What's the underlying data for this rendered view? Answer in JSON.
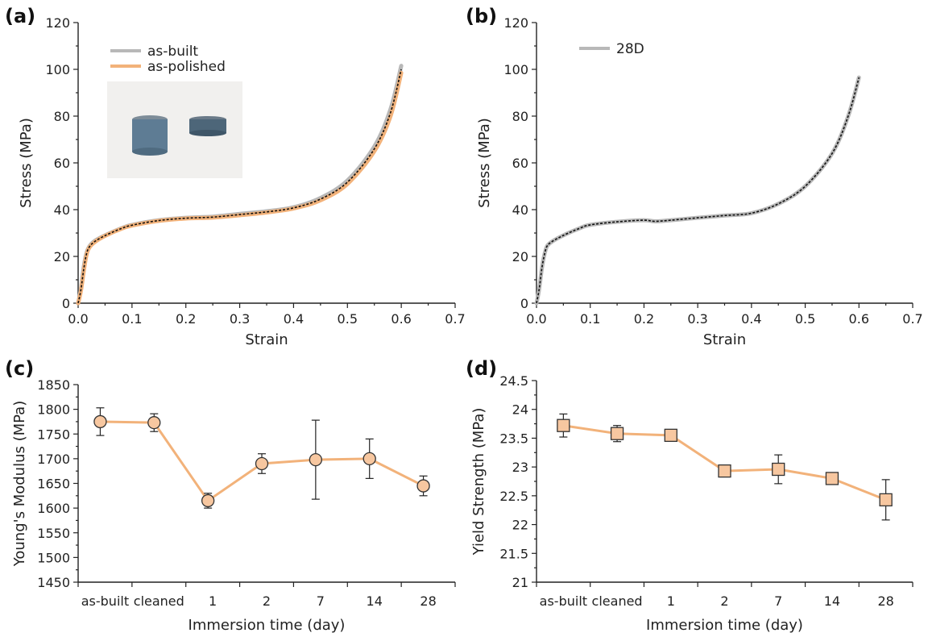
{
  "chart_data": [
    {
      "panel": "(a)",
      "type": "line",
      "xlabel": "Strain",
      "ylabel": "Stress (MPa)",
      "xlim": [
        0,
        0.7
      ],
      "ylim": [
        0,
        120
      ],
      "xticks": [
        "0.0",
        "0.1",
        "0.2",
        "0.3",
        "0.4",
        "0.5",
        "0.6",
        "0.7"
      ],
      "yticks": [
        "0",
        "20",
        "40",
        "60",
        "80",
        "100",
        "120"
      ],
      "legend_position": "top-left",
      "inset": "photo of two lattice cylinder specimens",
      "series": [
        {
          "name": "as-built",
          "color": "#b8b8b8",
          "x": [
            0,
            0.005,
            0.01,
            0.015,
            0.02,
            0.03,
            0.05,
            0.08,
            0.1,
            0.15,
            0.2,
            0.25,
            0.3,
            0.35,
            0.4,
            0.45,
            0.5,
            0.55,
            0.58,
            0.6
          ],
          "y": [
            0,
            6,
            15,
            21,
            24,
            26.5,
            29,
            32,
            33.5,
            35.5,
            36.5,
            37,
            38.2,
            39.3,
            41,
            45,
            52.5,
            67,
            83,
            101.5
          ]
        },
        {
          "name": "as-polished",
          "color": "#f2b27a",
          "x": [
            0,
            0.005,
            0.01,
            0.015,
            0.02,
            0.03,
            0.05,
            0.08,
            0.1,
            0.15,
            0.2,
            0.25,
            0.3,
            0.35,
            0.4,
            0.45,
            0.5,
            0.55,
            0.58,
            0.6
          ],
          "y": [
            0,
            5,
            13,
            20,
            23.5,
            26,
            28.8,
            31.8,
            33.2,
            35.2,
            36.2,
            36.6,
            37.6,
            38.8,
            40.5,
            44,
            51,
            65,
            80,
            98.5
          ]
        }
      ]
    },
    {
      "panel": "(b)",
      "type": "line",
      "xlabel": "Strain",
      "ylabel": "Stress (MPa)",
      "xlim": [
        0,
        0.7
      ],
      "ylim": [
        0,
        120
      ],
      "xticks": [
        "0.0",
        "0.1",
        "0.2",
        "0.3",
        "0.4",
        "0.5",
        "0.6",
        "0.7"
      ],
      "yticks": [
        "0",
        "20",
        "40",
        "60",
        "80",
        "100",
        "120"
      ],
      "legend_position": "top-left",
      "series": [
        {
          "name": "28D",
          "color": "#b8b8b8",
          "x": [
            0,
            0.005,
            0.01,
            0.015,
            0.02,
            0.03,
            0.05,
            0.08,
            0.1,
            0.15,
            0.2,
            0.22,
            0.25,
            0.3,
            0.35,
            0.4,
            0.45,
            0.5,
            0.55,
            0.58,
            0.6
          ],
          "y": [
            0,
            6,
            15,
            21,
            24.5,
            26.5,
            29,
            32,
            33.5,
            34.8,
            35.5,
            35,
            35.5,
            36.5,
            37.5,
            38.5,
            42.5,
            50,
            64,
            80,
            96.5
          ]
        }
      ]
    },
    {
      "panel": "(c)",
      "type": "line",
      "xlabel": "Immersion time (day)",
      "ylabel": "Young's Modulus (MPa)",
      "categories": [
        "as-built",
        "cleaned",
        "1",
        "2",
        "7",
        "14",
        "28"
      ],
      "ylim": [
        1450,
        1850
      ],
      "yticks": [
        "1450",
        "1500",
        "1550",
        "1600",
        "1650",
        "1700",
        "1750",
        "1800",
        "1850"
      ],
      "marker": "circle",
      "color": "#f2b27a",
      "values": [
        1775,
        1773,
        1615,
        1690,
        1698,
        1700,
        1645
      ],
      "errors": [
        28,
        18,
        15,
        20,
        80,
        40,
        20
      ]
    },
    {
      "panel": "(d)",
      "type": "line",
      "xlabel": "Immersion time (day)",
      "ylabel": "Yield Strength (MPa)",
      "categories": [
        "as-built",
        "cleaned",
        "1",
        "2",
        "7",
        "14",
        "28"
      ],
      "ylim": [
        21,
        24.5
      ],
      "yticks": [
        "21",
        "21.5",
        "22",
        "22.5",
        "23",
        "23.5",
        "24",
        "24.5"
      ],
      "marker": "square",
      "color": "#f2b27a",
      "values": [
        23.72,
        23.58,
        23.55,
        22.93,
        22.96,
        22.8,
        22.43
      ],
      "errors": [
        0.2,
        0.14,
        0.05,
        0.05,
        0.25,
        0.06,
        0.35
      ]
    }
  ]
}
